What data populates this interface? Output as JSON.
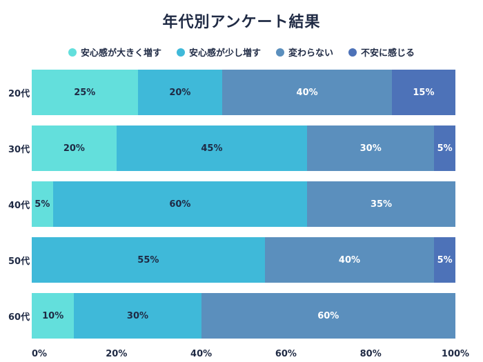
{
  "title": "年代別アンケート結果",
  "chart_data": {
    "type": "bar",
    "orientation": "horizontal",
    "stacked": true,
    "title": "年代別アンケート結果",
    "categories": [
      "20代",
      "30代",
      "40代",
      "50代",
      "60代"
    ],
    "series": [
      {
        "name": "安心感が大きく増す",
        "color": "#63dfdc",
        "label_color": "#1f2a44",
        "values": [
          25,
          20,
          5,
          0,
          10
        ]
      },
      {
        "name": "安心感が少し増す",
        "color": "#3fb9d9",
        "label_color": "#1f2a44",
        "values": [
          20,
          45,
          60,
          55,
          30
        ]
      },
      {
        "name": "変わらない",
        "color": "#5b8fbd",
        "label_color": "#ffffff",
        "values": [
          40,
          30,
          35,
          40,
          60
        ]
      },
      {
        "name": "不安に感じる",
        "color": "#4d72b8",
        "label_color": "#ffffff",
        "values": [
          15,
          5,
          0,
          5,
          0
        ]
      }
    ],
    "xlim": [
      0,
      100
    ],
    "x_ticks": [
      {
        "label": "0%",
        "value": 0
      },
      {
        "label": "20%",
        "value": 20
      },
      {
        "label": "40%",
        "value": 40
      },
      {
        "label": "60%",
        "value": 60
      },
      {
        "label": "80%",
        "value": 80
      },
      {
        "label": "100%",
        "value": 100
      }
    ],
    "legend_position": "top",
    "grid": false,
    "value_suffix": "%"
  }
}
